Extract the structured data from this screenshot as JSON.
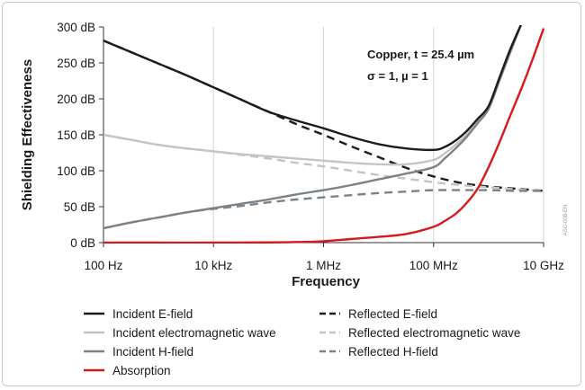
{
  "chart_data": {
    "type": "line",
    "title": "",
    "xlabel": "Frequency",
    "ylabel": "Shielding Effectiveness",
    "x_scale": "log",
    "xlim": [
      100,
      10000000000
    ],
    "ylim": [
      0,
      300
    ],
    "x_ticks": [
      {
        "value": 100,
        "label": "100 Hz"
      },
      {
        "value": 10000,
        "label": "10 kHz"
      },
      {
        "value": 1000000,
        "label": "1 MHz"
      },
      {
        "value": 100000000,
        "label": "100 MHz"
      },
      {
        "value": 10000000000,
        "label": "10 GHz"
      }
    ],
    "y_ticks": [
      {
        "value": 0,
        "label": "0 dB"
      },
      {
        "value": 50,
        "label": "50 dB"
      },
      {
        "value": 100,
        "label": "100 dB"
      },
      {
        "value": 150,
        "label": "150 dB"
      },
      {
        "value": 200,
        "label": "200 dB"
      },
      {
        "value": 250,
        "label": "250 dB"
      },
      {
        "value": 300,
        "label": "300 dB"
      }
    ],
    "grid": "vertical",
    "annotations": [
      "Copper, t = 25.4 µm",
      "σ = 1, µ = 1"
    ],
    "side_label": "ASC-008-EN",
    "legend_position": "bottom",
    "series": [
      {
        "name": "Incident E-field",
        "color": "#1c1c1c",
        "style": "solid",
        "x": [
          100,
          316,
          1000,
          3162,
          10000,
          31623,
          100000,
          316228,
          1000000,
          3162278,
          10000000,
          31622777,
          100000000,
          158489319,
          251188643,
          398107171,
          630957344,
          1000000000,
          1584893192,
          2511886432,
          3981071706
        ],
        "y": [
          281,
          265,
          249,
          233,
          216,
          199,
          182,
          170,
          159,
          147,
          137,
          131,
          129,
          133,
          142,
          155,
          172,
          190,
          230,
          270,
          305
        ]
      },
      {
        "name": "Reflected E-field",
        "color": "#1c1c1c",
        "style": "dashed",
        "x": [
          100,
          316,
          1000,
          3162,
          10000,
          31623,
          100000,
          316228,
          1000000,
          3162278,
          10000000,
          31622777,
          100000000,
          316227766,
          1000000000,
          3162277660,
          10000000000
        ],
        "y": [
          281,
          265,
          249,
          233,
          216,
          199,
          182,
          165,
          150,
          134,
          119,
          104,
          92,
          83,
          78,
          75,
          72
        ]
      },
      {
        "name": "Incident electromagnetic wave",
        "color": "#c4c4c4",
        "style": "solid",
        "x": [
          100,
          316,
          1000,
          3162,
          10000,
          31623,
          100000,
          316228,
          1000000,
          3162278,
          10000000,
          31622777,
          100000000,
          158489319,
          251188643,
          398107171,
          630957344,
          1000000000,
          1584893192,
          2511886432,
          3981071706
        ],
        "y": [
          150,
          143,
          136,
          131,
          127,
          123,
          120,
          117,
          114,
          111,
          109,
          109,
          115,
          124,
          136,
          150,
          168,
          188,
          228,
          268,
          305
        ]
      },
      {
        "name": "Reflected electromagnetic wave",
        "color": "#c4c4c4",
        "style": "dashed",
        "x": [
          100,
          316,
          1000,
          3162,
          10000,
          31623,
          100000,
          316228,
          1000000,
          3162278,
          10000000,
          31622777,
          100000000,
          316227766,
          1000000000,
          3162277660,
          10000000000
        ],
        "y": [
          150,
          143,
          136,
          131,
          127,
          122,
          117,
          111,
          106,
          100,
          94,
          89,
          84,
          80,
          77,
          74,
          72
        ]
      },
      {
        "name": "Incident H-field",
        "color": "#7a8288",
        "style": "solid",
        "x": [
          100,
          316,
          1000,
          3162,
          10000,
          31623,
          100000,
          316228,
          1000000,
          3162278,
          10000000,
          31622777,
          100000000,
          158489319,
          251188643,
          398107171,
          630957344,
          1000000000,
          1584893192,
          2511886432,
          3981071706
        ],
        "y": [
          20,
          28,
          35,
          42,
          48,
          54,
          60,
          67,
          73,
          80,
          88,
          96,
          105,
          117,
          131,
          147,
          166,
          186,
          226,
          266,
          305
        ]
      },
      {
        "name": "Reflected H-field",
        "color": "#7a8288",
        "style": "dashed",
        "x": [
          100,
          316,
          1000,
          3162,
          10000,
          31623,
          100000,
          316228,
          1000000,
          3162278,
          10000000,
          31622777,
          100000000,
          316227766,
          1000000000,
          3162277660,
          10000000000
        ],
        "y": [
          20,
          28,
          35,
          42,
          47,
          51,
          56,
          60,
          63,
          66,
          69,
          71,
          73,
          73,
          73,
          72,
          72
        ]
      },
      {
        "name": "Absorption",
        "color": "#d7191c",
        "style": "solid",
        "x": [
          100,
          1000,
          10000,
          100000,
          316228,
          1000000,
          3162278,
          10000000,
          31622777,
          100000000,
          158489319,
          251188643,
          398107171,
          630957344,
          1000000000,
          1584893192,
          2511886432,
          3981071706,
          6309573445,
          10000000000
        ],
        "y": [
          0,
          0,
          0,
          0.3,
          0.8,
          2,
          5,
          8,
          12,
          22,
          30,
          40,
          55,
          75,
          105,
          140,
          178,
          215,
          255,
          298
        ]
      }
    ]
  }
}
